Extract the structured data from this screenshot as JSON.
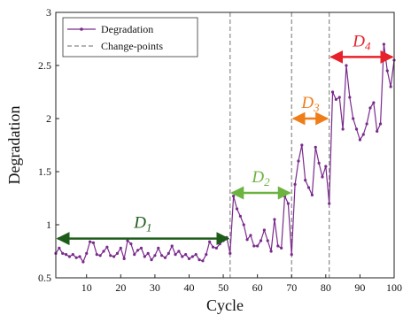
{
  "chart_data": {
    "type": "line",
    "title": "",
    "xlabel": "Cycle",
    "ylabel": "Degradation",
    "xlim": [
      1,
      100
    ],
    "ylim": [
      0.5,
      3
    ],
    "xticks": [
      10,
      20,
      30,
      40,
      50,
      60,
      70,
      80,
      90,
      100
    ],
    "yticks": [
      0.5,
      1,
      1.5,
      2,
      2.5,
      3
    ],
    "ytick_labels": [
      "0.5",
      "1",
      "1.5",
      "2",
      "2.5",
      "3"
    ],
    "legend": {
      "position": "top-left",
      "entries": [
        "Degradation",
        "Change-points"
      ]
    },
    "series": [
      {
        "name": "Degradation",
        "color": "#7a2b8c",
        "x": [
          1,
          2,
          3,
          4,
          5,
          6,
          7,
          8,
          9,
          10,
          11,
          12,
          13,
          14,
          15,
          16,
          17,
          18,
          19,
          20,
          21,
          22,
          23,
          24,
          25,
          26,
          27,
          28,
          29,
          30,
          31,
          32,
          33,
          34,
          35,
          36,
          37,
          38,
          39,
          40,
          41,
          42,
          43,
          44,
          45,
          46,
          47,
          48,
          49,
          50,
          51,
          52,
          53,
          54,
          55,
          56,
          57,
          58,
          59,
          60,
          61,
          62,
          63,
          64,
          65,
          66,
          67,
          68,
          69,
          70,
          71,
          72,
          73,
          74,
          75,
          76,
          77,
          78,
          79,
          80,
          81,
          82,
          83,
          84,
          85,
          86,
          87,
          88,
          89,
          90,
          91,
          92,
          93,
          94,
          95,
          96,
          97,
          98,
          99,
          100
        ],
        "y": [
          0.73,
          0.78,
          0.73,
          0.72,
          0.7,
          0.72,
          0.69,
          0.7,
          0.65,
          0.73,
          0.84,
          0.83,
          0.72,
          0.71,
          0.75,
          0.79,
          0.71,
          0.7,
          0.73,
          0.78,
          0.68,
          0.85,
          0.82,
          0.72,
          0.76,
          0.78,
          0.7,
          0.73,
          0.67,
          0.71,
          0.78,
          0.71,
          0.69,
          0.73,
          0.8,
          0.72,
          0.75,
          0.7,
          0.72,
          0.68,
          0.7,
          0.72,
          0.67,
          0.66,
          0.72,
          0.84,
          0.79,
          0.78,
          0.82,
          0.85,
          0.88,
          0.73,
          1.27,
          1.15,
          1.08,
          1.0,
          0.86,
          0.9,
          0.8,
          0.8,
          0.85,
          0.95,
          0.85,
          0.75,
          1.05,
          0.8,
          0.78,
          1.27,
          1.2,
          0.72,
          1.38,
          1.6,
          1.75,
          1.42,
          1.35,
          1.28,
          1.73,
          1.58,
          1.45,
          1.55,
          1.2,
          2.25,
          2.18,
          2.2,
          1.9,
          2.5,
          2.2,
          2.0,
          1.9,
          1.8,
          1.85,
          1.95,
          2.1,
          2.15,
          1.88,
          1.95,
          2.7,
          2.45,
          2.3,
          2.55
        ]
      }
    ],
    "change_points": [
      52,
      70,
      81
    ],
    "phases": [
      {
        "label": "D",
        "sub": "1",
        "x_start": 1,
        "x_end": 52,
        "y": 0.87,
        "color": "#1e5c1a"
      },
      {
        "label": "D",
        "sub": "2",
        "x_start": 52,
        "x_end": 70,
        "y": 1.3,
        "color": "#6cb33f"
      },
      {
        "label": "D",
        "sub": "3",
        "x_start": 70,
        "x_end": 81,
        "y": 2.0,
        "color": "#ef7d1a"
      },
      {
        "label": "D",
        "sub": "4",
        "x_start": 81,
        "x_end": 100,
        "y": 2.58,
        "color": "#e8202a"
      }
    ]
  }
}
